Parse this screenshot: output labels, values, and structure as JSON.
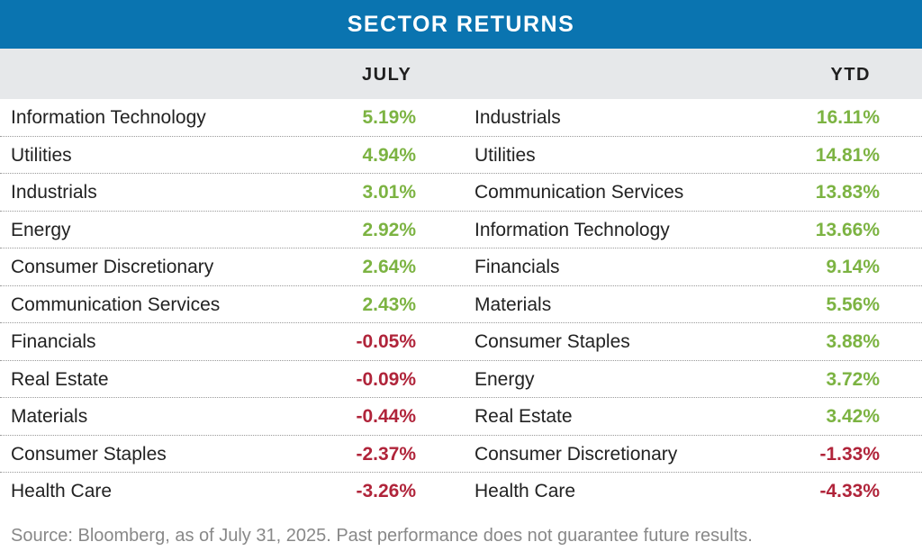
{
  "title": "SECTOR RETURNS",
  "headers": {
    "july": "JULY",
    "ytd": "YTD"
  },
  "colors": {
    "title_bar": "#0a74b0",
    "positive": "#7cb342",
    "negative": "#b0243a",
    "header_bg": "#e6e8ea"
  },
  "rows": [
    {
      "july_sector": "Information Technology",
      "july_value": "5.19%",
      "july_sign": "pos",
      "ytd_sector": "Industrials",
      "ytd_value": "16.11%",
      "ytd_sign": "pos"
    },
    {
      "july_sector": "Utilities",
      "july_value": "4.94%",
      "july_sign": "pos",
      "ytd_sector": "Utilities",
      "ytd_value": "14.81%",
      "ytd_sign": "pos"
    },
    {
      "july_sector": "Industrials",
      "july_value": "3.01%",
      "july_sign": "pos",
      "ytd_sector": "Communication Services",
      "ytd_value": "13.83%",
      "ytd_sign": "pos"
    },
    {
      "july_sector": "Energy",
      "july_value": "2.92%",
      "july_sign": "pos",
      "ytd_sector": "Information Technology",
      "ytd_value": "13.66%",
      "ytd_sign": "pos"
    },
    {
      "july_sector": "Consumer Discretionary",
      "july_value": "2.64%",
      "july_sign": "pos",
      "ytd_sector": "Financials",
      "ytd_value": "9.14%",
      "ytd_sign": "pos"
    },
    {
      "july_sector": "Communication Services",
      "july_value": "2.43%",
      "july_sign": "pos",
      "ytd_sector": "Materials",
      "ytd_value": "5.56%",
      "ytd_sign": "pos"
    },
    {
      "july_sector": "Financials",
      "july_value": "-0.05%",
      "july_sign": "neg",
      "ytd_sector": "Consumer Staples",
      "ytd_value": "3.88%",
      "ytd_sign": "pos"
    },
    {
      "july_sector": "Real Estate",
      "july_value": "-0.09%",
      "july_sign": "neg",
      "ytd_sector": "Energy",
      "ytd_value": "3.72%",
      "ytd_sign": "pos"
    },
    {
      "july_sector": "Materials",
      "july_value": "-0.44%",
      "july_sign": "neg",
      "ytd_sector": "Real Estate",
      "ytd_value": "3.42%",
      "ytd_sign": "pos"
    },
    {
      "july_sector": "Consumer Staples",
      "july_value": "-2.37%",
      "july_sign": "neg",
      "ytd_sector": "Consumer Discretionary",
      "ytd_value": "-1.33%",
      "ytd_sign": "neg"
    },
    {
      "july_sector": "Health Care",
      "july_value": "-3.26%",
      "july_sign": "neg",
      "ytd_sector": "Health Care",
      "ytd_value": "-4.33%",
      "ytd_sign": "neg"
    }
  ],
  "source_note": "Source: Bloomberg, as of July 31, 2025. Past performance does not guarantee future results."
}
